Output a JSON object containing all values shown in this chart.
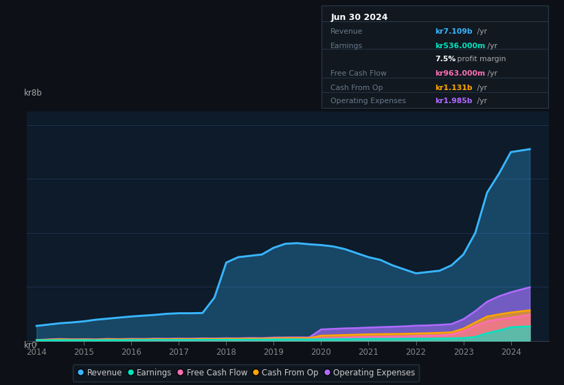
{
  "bg_color": "#0d1117",
  "plot_bg_color": "#0d1b2a",
  "grid_color": "#1e3050",
  "title_box": {
    "date": "Jun 30 2024",
    "rows": [
      {
        "label": "Revenue",
        "value": "kr7.109b",
        "suffix": " /yr",
        "value_color": "#38b6ff"
      },
      {
        "label": "Earnings",
        "value": "kr536.000m",
        "suffix": " /yr",
        "value_color": "#00e5c0"
      },
      {
        "label": "",
        "value": "7.5%",
        "suffix": " profit margin",
        "value_color": "#ffffff"
      },
      {
        "label": "Free Cash Flow",
        "value": "kr963.000m",
        "suffix": " /yr",
        "value_color": "#ff6eb4"
      },
      {
        "label": "Cash From Op",
        "value": "kr1.131b",
        "suffix": " /yr",
        "value_color": "#ffa500"
      },
      {
        "label": "Operating Expenses",
        "value": "kr1.985b",
        "suffix": " /yr",
        "value_color": "#b06aff"
      }
    ]
  },
  "ylabel_top": "kr8b",
  "ylabel_bot": "kr0",
  "years": [
    2014.0,
    2014.25,
    2014.5,
    2014.75,
    2015.0,
    2015.25,
    2015.5,
    2015.75,
    2016.0,
    2016.25,
    2016.5,
    2016.75,
    2017.0,
    2017.25,
    2017.5,
    2017.75,
    2018.0,
    2018.25,
    2018.5,
    2018.75,
    2019.0,
    2019.25,
    2019.5,
    2019.75,
    2020.0,
    2020.25,
    2020.5,
    2020.75,
    2021.0,
    2021.25,
    2021.5,
    2021.75,
    2022.0,
    2022.25,
    2022.5,
    2022.75,
    2023.0,
    2023.25,
    2023.5,
    2023.75,
    2024.0,
    2024.4
  ],
  "revenue": [
    0.55,
    0.6,
    0.65,
    0.68,
    0.72,
    0.78,
    0.82,
    0.86,
    0.9,
    0.93,
    0.96,
    1.0,
    1.02,
    1.02,
    1.03,
    1.6,
    2.9,
    3.1,
    3.15,
    3.2,
    3.45,
    3.6,
    3.62,
    3.58,
    3.55,
    3.5,
    3.4,
    3.25,
    3.1,
    3.0,
    2.8,
    2.65,
    2.5,
    2.55,
    2.6,
    2.8,
    3.2,
    4.0,
    5.5,
    6.2,
    7.0,
    7.109
  ],
  "earnings": [
    0.02,
    0.018,
    0.022,
    0.02,
    0.022,
    0.018,
    0.025,
    0.02,
    0.028,
    0.025,
    0.032,
    0.028,
    0.032,
    0.028,
    0.035,
    0.032,
    0.038,
    0.035,
    0.042,
    0.04,
    0.048,
    0.05,
    0.052,
    0.048,
    0.055,
    0.058,
    0.062,
    0.065,
    0.068,
    0.07,
    0.072,
    0.075,
    0.078,
    0.08,
    0.085,
    0.09,
    0.1,
    0.14,
    0.28,
    0.38,
    0.5,
    0.536
  ],
  "fcf": [
    0.01,
    0.012,
    0.015,
    0.013,
    0.018,
    0.015,
    0.02,
    0.018,
    0.022,
    0.02,
    0.025,
    0.022,
    0.028,
    0.025,
    0.03,
    0.028,
    0.035,
    0.032,
    0.04,
    0.038,
    0.048,
    0.05,
    0.052,
    0.055,
    0.095,
    0.1,
    0.12,
    0.13,
    0.145,
    0.148,
    0.155,
    0.16,
    0.175,
    0.185,
    0.2,
    0.23,
    0.35,
    0.55,
    0.72,
    0.8,
    0.85,
    0.963
  ],
  "cashfromop": [
    0.02,
    0.04,
    0.055,
    0.045,
    0.05,
    0.042,
    0.058,
    0.052,
    0.058,
    0.055,
    0.062,
    0.06,
    0.065,
    0.062,
    0.07,
    0.068,
    0.075,
    0.072,
    0.082,
    0.08,
    0.095,
    0.1,
    0.102,
    0.1,
    0.19,
    0.2,
    0.215,
    0.225,
    0.24,
    0.245,
    0.25,
    0.258,
    0.27,
    0.28,
    0.295,
    0.315,
    0.45,
    0.68,
    0.9,
    0.98,
    1.05,
    1.131
  ],
  "opex": [
    0.03,
    0.05,
    0.068,
    0.055,
    0.06,
    0.052,
    0.07,
    0.062,
    0.072,
    0.068,
    0.08,
    0.075,
    0.082,
    0.078,
    0.09,
    0.085,
    0.095,
    0.09,
    0.105,
    0.1,
    0.12,
    0.125,
    0.128,
    0.125,
    0.42,
    0.44,
    0.46,
    0.47,
    0.49,
    0.505,
    0.52,
    0.535,
    0.56,
    0.57,
    0.59,
    0.62,
    0.8,
    1.1,
    1.45,
    1.65,
    1.8,
    1.985
  ],
  "colors": {
    "revenue": "#38b6ff",
    "earnings": "#00e5c0",
    "fcf": "#ff6eb4",
    "cashfromop": "#ffa500",
    "opex": "#b06aff"
  },
  "ylim": [
    0,
    8.5
  ],
  "xlim": [
    2013.8,
    2024.8
  ]
}
